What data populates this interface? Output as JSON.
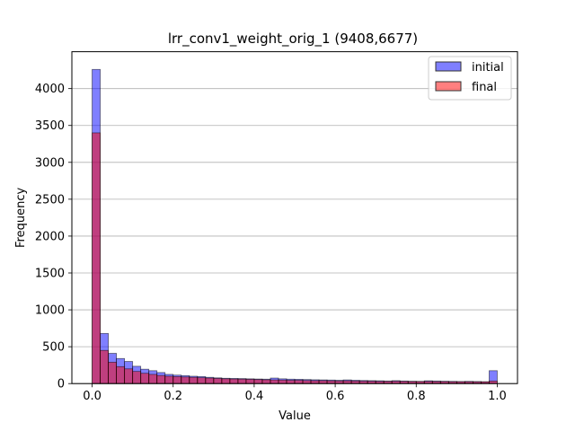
{
  "chart_data": {
    "type": "bar",
    "title": "lrr_conv1_weight_orig_1 (9408,6677)",
    "xlabel": "Value",
    "ylabel": "Frequency",
    "xlim": [
      -0.05,
      1.05
    ],
    "ylim": [
      0,
      4500
    ],
    "xticks": [
      0.0,
      0.2,
      0.4,
      0.6,
      0.8,
      1.0
    ],
    "xtick_labels": [
      "0.0",
      "0.2",
      "0.4",
      "0.6",
      "0.8",
      "1.0"
    ],
    "yticks": [
      0,
      500,
      1000,
      1500,
      2000,
      2500,
      3000,
      3500,
      4000
    ],
    "ytick_labels": [
      "0",
      "500",
      "1000",
      "1500",
      "2000",
      "2500",
      "3000",
      "3500",
      "4000"
    ],
    "grid": "horizontal",
    "legend_position": "top-right",
    "bins": {
      "start": 0.0,
      "end": 1.0,
      "count": 50
    },
    "series": [
      {
        "name": "initial",
        "color": "#0000ff",
        "alpha": 0.5,
        "values": [
          4260,
          680,
          410,
          340,
          300,
          235,
          195,
          175,
          150,
          125,
          115,
          108,
          100,
          95,
          85,
          78,
          72,
          70,
          68,
          65,
          62,
          60,
          75,
          65,
          60,
          58,
          55,
          52,
          50,
          48,
          45,
          50,
          45,
          42,
          40,
          38,
          35,
          40,
          35,
          32,
          30,
          38,
          35,
          32,
          30,
          28,
          30,
          28,
          25,
          175
        ]
      },
      {
        "name": "final",
        "color": "#ff0000",
        "alpha": 0.5,
        "values": [
          3400,
          450,
          290,
          230,
          200,
          165,
          140,
          125,
          110,
          100,
          95,
          90,
          85,
          80,
          75,
          70,
          65,
          62,
          60,
          58,
          55,
          52,
          50,
          48,
          45,
          45,
          42,
          40,
          40,
          38,
          36,
          38,
          35,
          33,
          32,
          30,
          30,
          32,
          30,
          28,
          28,
          30,
          28,
          27,
          25,
          25,
          25,
          24,
          24,
          35
        ]
      }
    ]
  }
}
